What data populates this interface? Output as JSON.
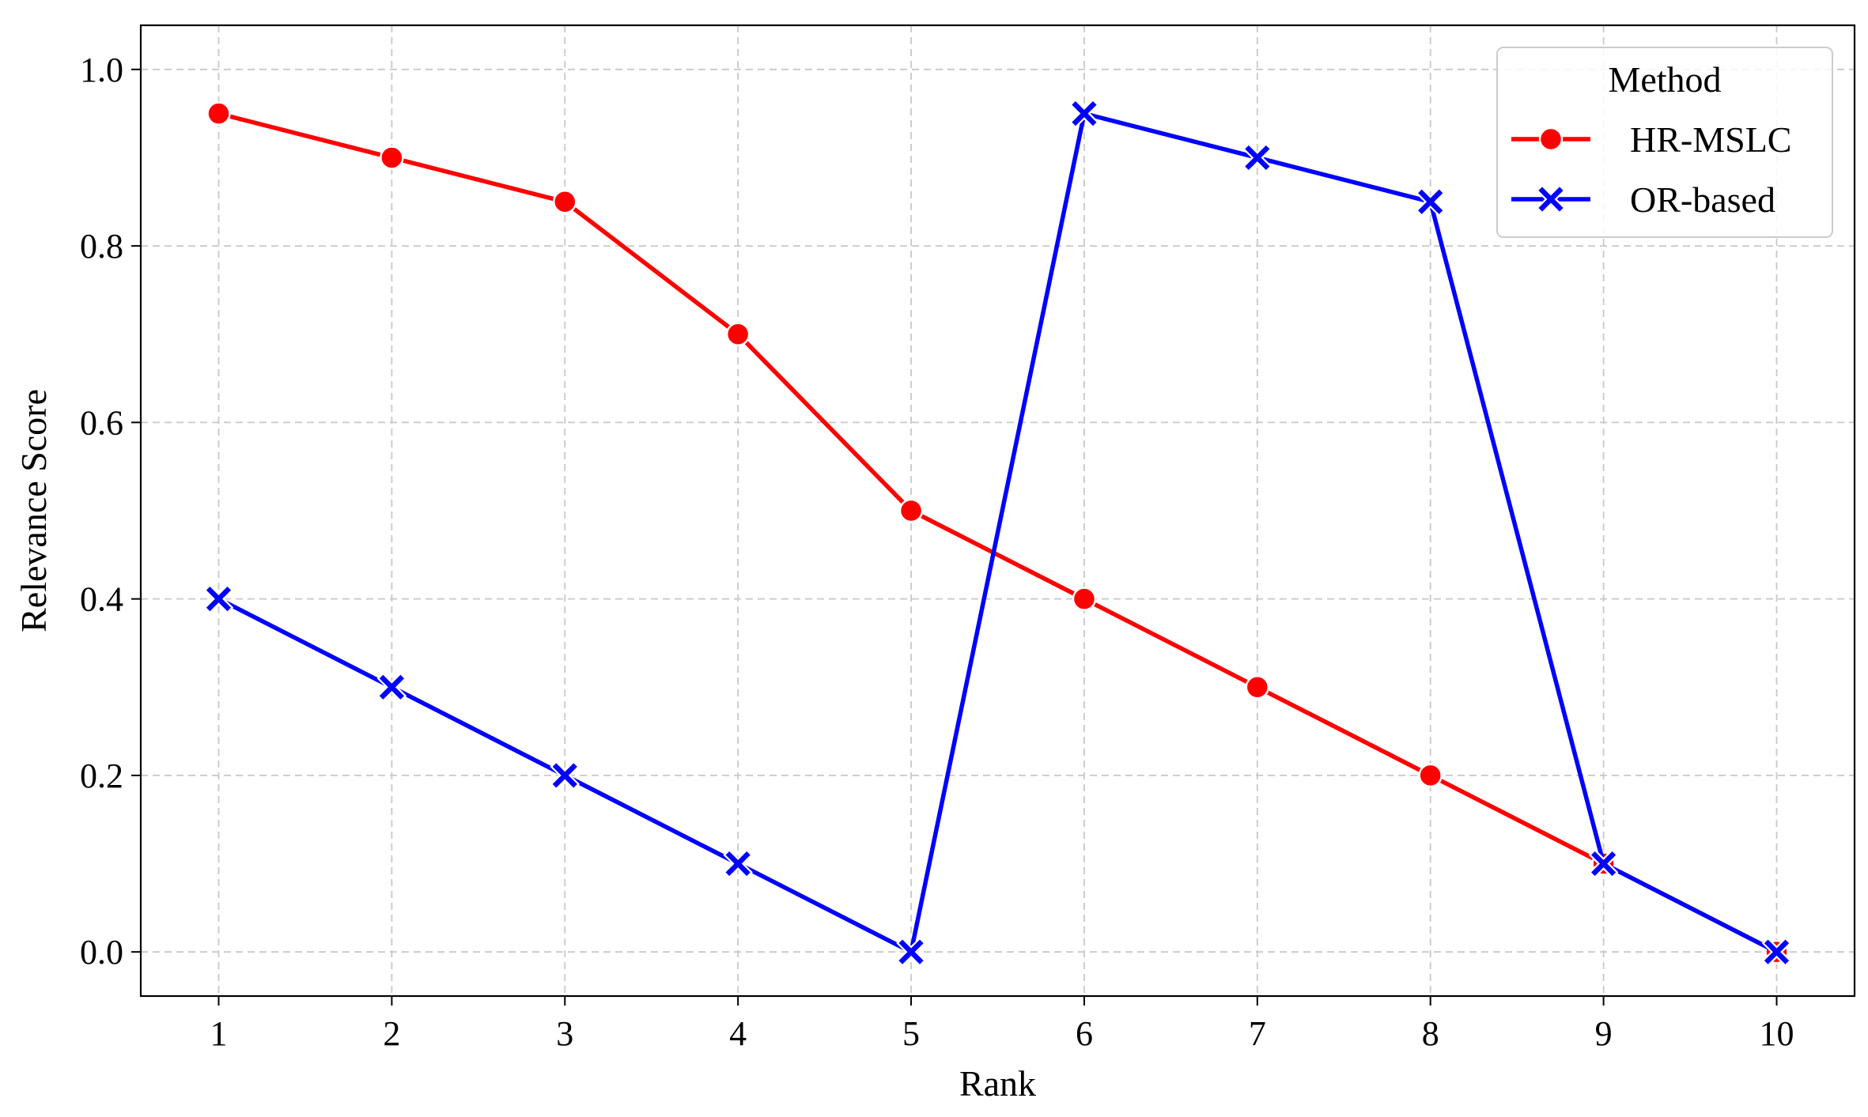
{
  "chart_data": {
    "type": "line",
    "title": "",
    "xlabel": "Rank",
    "ylabel": "Relevance Score",
    "x": [
      1,
      2,
      3,
      4,
      5,
      6,
      7,
      8,
      9,
      10
    ],
    "x_ticks": [
      "1",
      "2",
      "3",
      "4",
      "5",
      "6",
      "7",
      "8",
      "9",
      "10"
    ],
    "xlim": [
      0.55,
      10.45
    ],
    "ylim": [
      -0.05,
      1.05
    ],
    "y_ticks": [
      "0.0",
      "0.2",
      "0.4",
      "0.6",
      "0.8",
      "1.0"
    ],
    "y_tick_values": [
      0.0,
      0.2,
      0.4,
      0.6,
      0.8,
      1.0
    ],
    "grid": true,
    "grid_style": "dashed",
    "legend": {
      "title": "Method",
      "placement": "top-right"
    },
    "series": [
      {
        "name": "HR-MSLC",
        "color": "#ff0000",
        "marker": "circle",
        "values": [
          0.95,
          0.9,
          0.85,
          0.7,
          0.5,
          0.4,
          0.3,
          0.2,
          0.1,
          0.0
        ]
      },
      {
        "name": "OR-based",
        "color": "#0000ff",
        "marker": "x",
        "values": [
          0.4,
          0.3,
          0.2,
          0.1,
          0.0,
          0.95,
          0.9,
          0.85,
          0.1,
          0.0
        ]
      }
    ]
  }
}
